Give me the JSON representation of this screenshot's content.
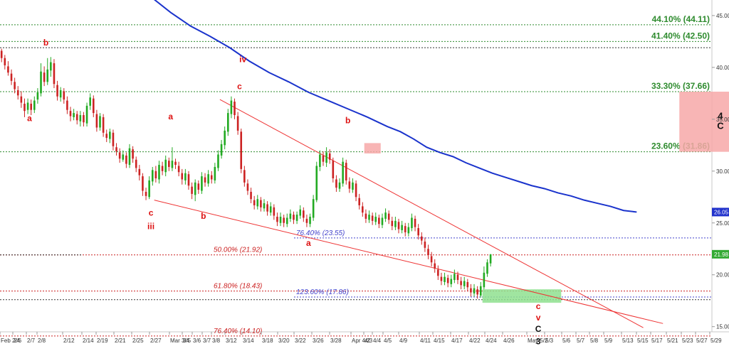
{
  "chart_data": {
    "type": "candlestick",
    "y_axis": {
      "min": 14.5,
      "max": 46.5,
      "ticks": [
        15.0,
        20.0,
        25.0,
        30.0,
        35.0,
        40.0,
        45.0
      ],
      "tick_labels": [
        "15.00",
        "20.00",
        "25.00",
        "30.00",
        "35.00",
        "40.00",
        "45.00"
      ],
      "position": "right"
    },
    "x_axis": {
      "tick_labels": [
        "Feb 2/4",
        "2/6",
        "2/7",
        "2/8",
        "2/12",
        "2/14",
        "2/19",
        "2/21",
        "2/25",
        "2/27",
        "Mar 3/4",
        "3/5",
        "3/6",
        "3/7",
        "3/8",
        "3/12",
        "3/14",
        "3/18",
        "3/20",
        "3/22",
        "3/26",
        "3/28",
        "Apr 4/2",
        "4/3",
        "4/4",
        "4/5",
        "4/9",
        "4/11",
        "4/15",
        "4/17",
        "4/22",
        "4/24",
        "4/26",
        "May 5/2",
        "5/3",
        "5/6",
        "5/7",
        "5/8",
        "5/9",
        "5/13",
        "5/15",
        "5/17",
        "5/21",
        "5/23",
        "5/27",
        "5/29"
      ]
    },
    "current_price_labels": [
      {
        "value": 26.05,
        "label": "26.05",
        "color": "#2233cc"
      },
      {
        "value": 21.98,
        "label": "21.98",
        "color": "#33aa33"
      }
    ],
    "levels": [
      {
        "label": "44.10% (44.11)",
        "value": 44.11,
        "color": "#2e8b2e",
        "style": "dotted"
      },
      {
        "label": "41.40% (42.50)",
        "value": 42.5,
        "color": "#2e8b2e",
        "style": "dotted"
      },
      {
        "label": "",
        "value": 41.9,
        "color": "#333333",
        "style": "dotted"
      },
      {
        "label": "33.30% (37.66)",
        "value": 37.66,
        "color": "#2e8b2e",
        "style": "dotted"
      },
      {
        "label": "23.60% (31.86)",
        "value": 31.86,
        "color": "#2e8b2e",
        "style": "dotted"
      },
      {
        "label": "76.40% (23.55)",
        "value": 23.55,
        "color": "#4444cc",
        "style": "dotted",
        "x_from": "3/22"
      },
      {
        "label": "50.00% (21.92)",
        "value": 21.92,
        "color": "#cc2222",
        "style": "dotted"
      },
      {
        "label": "",
        "value": 21.92,
        "color": "#333333",
        "style": "dotted",
        "x_to": "2/14"
      },
      {
        "label": "61.80% (18.43)",
        "value": 18.43,
        "color": "#cc2222",
        "style": "dotted"
      },
      {
        "label": "123.60% (17.86)",
        "value": 17.86,
        "color": "#4444cc",
        "style": "dotted",
        "x_from": "3/22"
      },
      {
        "label": "",
        "value": 17.6,
        "color": "#333333",
        "style": "dotted"
      },
      {
        "label": "76.40% (14.10)",
        "value": 14.1,
        "color": "#cc2222",
        "style": "dotted"
      }
    ],
    "moving_average": {
      "color": "#1a33cc",
      "points": [
        [
          46,
          46.8
        ],
        [
          52,
          45.3
        ],
        [
          58,
          44.0
        ],
        [
          64,
          43.0
        ],
        [
          70,
          41.9
        ],
        [
          76,
          40.6
        ],
        [
          82,
          39.5
        ],
        [
          88,
          38.6
        ],
        [
          94,
          37.6
        ],
        [
          100,
          36.8
        ],
        [
          106,
          36.0
        ],
        [
          112,
          35.2
        ],
        [
          118,
          34.3
        ],
        [
          122,
          33.8
        ],
        [
          126,
          33.1
        ],
        [
          130,
          32.3
        ],
        [
          134,
          31.8
        ],
        [
          138,
          31.4
        ],
        [
          142,
          30.8
        ],
        [
          146,
          30.3
        ],
        [
          150,
          29.8
        ],
        [
          154,
          29.4
        ],
        [
          158,
          29.0
        ],
        [
          162,
          28.6
        ],
        [
          166,
          28.3
        ],
        [
          170,
          27.9
        ],
        [
          174,
          27.6
        ],
        [
          178,
          27.2
        ],
        [
          182,
          26.9
        ],
        [
          186,
          26.6
        ],
        [
          190,
          26.2
        ],
        [
          194,
          26.05
        ]
      ]
    },
    "trendlines": [
      {
        "from": [
          47,
          27.2
        ],
        "to": [
          202,
          15.3
        ],
        "color": "#ee3333"
      },
      {
        "from": [
          67,
          36.9
        ],
        "to": [
          196,
          14.9
        ],
        "color": "#ee3333"
      }
    ],
    "zones": [
      {
        "x_from": 207,
        "x_to": 232,
        "y_from": 31.86,
        "y_to": 37.66,
        "color": "#f7a8a8",
        "label_lines": [
          "4",
          "C"
        ]
      },
      {
        "x_from": 111,
        "x_to": 116,
        "y_from": 31.7,
        "y_to": 32.7,
        "color": "#f7a8a8"
      },
      {
        "x_from": 147,
        "x_to": 171,
        "y_from": 17.3,
        "y_to": 18.6,
        "color": "#8fe08f"
      }
    ],
    "wave_labels": [
      {
        "text": "b",
        "x": 14,
        "y": 42.1,
        "color": "#dd1111"
      },
      {
        "text": "a",
        "x": 9,
        "y": 34.8,
        "color": "#dd1111"
      },
      {
        "text": "iv",
        "x": 74,
        "y": 40.5,
        "color": "#dd1111"
      },
      {
        "text": "c",
        "x": 73,
        "y": 37.9,
        "color": "#dd1111"
      },
      {
        "text": "a",
        "x": 52,
        "y": 35.0,
        "color": "#dd1111"
      },
      {
        "text": "b",
        "x": 106,
        "y": 34.6,
        "color": "#dd1111"
      },
      {
        "text": "c",
        "x": 46,
        "y": 25.7,
        "color": "#dd1111"
      },
      {
        "text": "iii",
        "x": 46,
        "y": 24.4,
        "color": "#dd1111"
      },
      {
        "text": "b",
        "x": 62,
        "y": 25.4,
        "color": "#dd1111"
      },
      {
        "text": "a",
        "x": 94,
        "y": 22.8,
        "color": "#dd1111"
      },
      {
        "text": "c",
        "x": 164,
        "y": 16.7,
        "color": "#dd1111"
      },
      {
        "text": "v",
        "x": 164,
        "y": 15.6,
        "color": "#dd1111"
      },
      {
        "text": "C",
        "x": 164,
        "y": 14.5,
        "color": "#111111"
      },
      {
        "text": "3",
        "x": 164,
        "y": 13.3,
        "color": "#111111"
      }
    ],
    "candles": [
      [
        0,
        41.6,
        40.9,
        41.8,
        40.5
      ],
      [
        1,
        40.9,
        40.2,
        41.2,
        39.8
      ],
      [
        2,
        40.1,
        39.5,
        40.6,
        39.2
      ],
      [
        3,
        39.4,
        38.7,
        39.8,
        38.3
      ],
      [
        4,
        38.6,
        37.9,
        39.0,
        37.5
      ],
      [
        5,
        37.8,
        37.3,
        38.2,
        36.9
      ],
      [
        6,
        37.2,
        36.6,
        37.7,
        36.1
      ],
      [
        7,
        36.5,
        35.8,
        37.0,
        35.2
      ],
      [
        8,
        35.9,
        36.6,
        37.0,
        35.5
      ],
      [
        9,
        36.5,
        35.9,
        36.9,
        35.4
      ],
      [
        10,
        35.9,
        36.8,
        37.2,
        35.6
      ],
      [
        11,
        36.9,
        37.6,
        38.0,
        36.5
      ],
      [
        12,
        37.5,
        39.6,
        40.4,
        37.2
      ],
      [
        13,
        39.5,
        38.6,
        40.1,
        38.2
      ],
      [
        14,
        38.6,
        39.8,
        40.9,
        38.3
      ],
      [
        15,
        39.7,
        40.5,
        41.0,
        39.1
      ],
      [
        16,
        40.4,
        38.4,
        40.8,
        38.0
      ],
      [
        17,
        38.3,
        37.2,
        38.7,
        36.8
      ],
      [
        18,
        37.1,
        37.8,
        38.1,
        36.7
      ],
      [
        19,
        37.7,
        36.9,
        38.0,
        36.5
      ],
      [
        20,
        36.8,
        35.9,
        37.2,
        35.5
      ],
      [
        21,
        35.8,
        35.3,
        36.2,
        34.8
      ],
      [
        22,
        35.2,
        35.6,
        36.0,
        34.9
      ],
      [
        23,
        35.5,
        34.9,
        35.8,
        34.5
      ],
      [
        24,
        34.8,
        35.4,
        35.8,
        34.3
      ],
      [
        25,
        35.4,
        34.7,
        35.7,
        34.3
      ],
      [
        26,
        34.6,
        36.3,
        36.6,
        34.3
      ],
      [
        27,
        36.3,
        37.1,
        37.5,
        35.9
      ],
      [
        28,
        37.0,
        35.6,
        37.3,
        35.2
      ],
      [
        29,
        35.5,
        34.2,
        35.9,
        33.8
      ],
      [
        30,
        34.2,
        35.3,
        35.6,
        33.9
      ],
      [
        31,
        35.2,
        33.7,
        35.5,
        33.3
      ],
      [
        32,
        33.6,
        33.2,
        34.0,
        32.8
      ],
      [
        33,
        33.1,
        33.8,
        34.1,
        32.7
      ],
      [
        34,
        33.7,
        32.4,
        34.0,
        32.0
      ],
      [
        35,
        32.3,
        31.9,
        32.7,
        31.5
      ],
      [
        36,
        31.8,
        31.2,
        32.2,
        30.8
      ],
      [
        37,
        31.1,
        31.6,
        32.0,
        30.9
      ],
      [
        38,
        31.5,
        30.7,
        31.8,
        30.3
      ],
      [
        39,
        30.6,
        32.2,
        32.6,
        30.3
      ],
      [
        40,
        32.1,
        31.2,
        32.4,
        30.8
      ],
      [
        41,
        31.1,
        30.3,
        31.4,
        29.9
      ],
      [
        42,
        30.2,
        29.6,
        30.6,
        29.1
      ],
      [
        43,
        29.5,
        28.1,
        29.8,
        27.6
      ],
      [
        44,
        28.0,
        27.6,
        28.4,
        27.2
      ],
      [
        45,
        27.5,
        29.1,
        29.5,
        27.3
      ],
      [
        46,
        29.0,
        30.1,
        30.4,
        28.6
      ],
      [
        47,
        30.0,
        29.3,
        30.5,
        28.9
      ],
      [
        48,
        29.2,
        30.6,
        31.0,
        28.8
      ],
      [
        49,
        30.5,
        30.0,
        30.9,
        29.6
      ],
      [
        50,
        29.9,
        31.1,
        31.5,
        29.5
      ],
      [
        51,
        31.0,
        30.4,
        31.3,
        30.0
      ],
      [
        52,
        30.3,
        31.0,
        32.3,
        30.0
      ],
      [
        53,
        30.9,
        30.6,
        31.2,
        30.2
      ],
      [
        54,
        30.5,
        29.9,
        30.9,
        29.5
      ],
      [
        55,
        29.8,
        29.2,
        30.2,
        28.7
      ],
      [
        56,
        29.1,
        29.8,
        30.2,
        28.7
      ],
      [
        57,
        29.7,
        28.6,
        30.0,
        28.2
      ],
      [
        58,
        28.5,
        27.8,
        28.9,
        27.3
      ],
      [
        59,
        27.7,
        28.9,
        29.2,
        27.1
      ],
      [
        60,
        28.8,
        28.2,
        29.1,
        27.8
      ],
      [
        61,
        28.1,
        29.5,
        29.9,
        27.8
      ],
      [
        62,
        29.4,
        28.9,
        29.8,
        28.5
      ],
      [
        63,
        28.8,
        29.7,
        30.1,
        28.5
      ],
      [
        64,
        29.6,
        29.2,
        30.0,
        28.8
      ],
      [
        65,
        29.1,
        30.4,
        30.8,
        28.8
      ],
      [
        66,
        30.3,
        31.6,
        32.0,
        30.0
      ],
      [
        67,
        31.5,
        32.6,
        33.0,
        31.2
      ],
      [
        68,
        32.5,
        33.9,
        34.3,
        32.1
      ],
      [
        69,
        33.8,
        35.6,
        36.0,
        33.4
      ],
      [
        70,
        35.5,
        36.8,
        37.2,
        35.1
      ],
      [
        71,
        36.7,
        35.4,
        37.0,
        35.0
      ],
      [
        72,
        35.3,
        33.9,
        35.7,
        33.5
      ],
      [
        73,
        33.8,
        30.2,
        34.1,
        29.8
      ],
      [
        74,
        30.1,
        28.9,
        30.5,
        28.5
      ],
      [
        75,
        28.8,
        28.1,
        29.2,
        27.7
      ],
      [
        76,
        28.0,
        27.3,
        28.4,
        26.9
      ],
      [
        77,
        27.2,
        26.7,
        27.6,
        26.3
      ],
      [
        78,
        26.6,
        27.3,
        27.7,
        26.3
      ],
      [
        79,
        27.2,
        26.5,
        27.5,
        26.1
      ],
      [
        80,
        26.4,
        26.9,
        27.3,
        26.1
      ],
      [
        81,
        26.8,
        26.1,
        27.1,
        25.7
      ],
      [
        82,
        26.0,
        26.6,
        27.0,
        25.7
      ],
      [
        83,
        26.5,
        25.7,
        26.8,
        25.3
      ],
      [
        84,
        25.6,
        25.1,
        26.0,
        24.7
      ],
      [
        85,
        25.0,
        25.6,
        26.0,
        24.7
      ],
      [
        86,
        25.5,
        25.0,
        25.8,
        24.6
      ],
      [
        87,
        24.9,
        25.5,
        25.9,
        24.6
      ],
      [
        88,
        25.4,
        25.9,
        26.3,
        25.1
      ],
      [
        89,
        25.8,
        25.3,
        26.1,
        24.9
      ],
      [
        90,
        25.2,
        25.8,
        26.1,
        24.9
      ],
      [
        91,
        25.7,
        26.3,
        26.7,
        25.4
      ],
      [
        92,
        26.2,
        25.5,
        26.5,
        25.1
      ],
      [
        93,
        25.4,
        25.0,
        25.8,
        24.6
      ],
      [
        94,
        24.9,
        25.6,
        25.9,
        24.6
      ],
      [
        95,
        25.5,
        27.3,
        27.7,
        25.2
      ],
      [
        96,
        27.2,
        30.5,
        30.9,
        27.0
      ],
      [
        97,
        30.4,
        31.6,
        32.0,
        30.0
      ],
      [
        98,
        31.5,
        30.9,
        31.9,
        30.5
      ],
      [
        99,
        30.8,
        31.8,
        32.3,
        30.4
      ],
      [
        100,
        31.7,
        31.1,
        32.1,
        30.7
      ],
      [
        101,
        31.0,
        29.3,
        31.3,
        28.9
      ],
      [
        102,
        29.2,
        28.4,
        29.6,
        28.0
      ],
      [
        103,
        28.3,
        28.9,
        29.3,
        28.0
      ],
      [
        104,
        28.8,
        30.9,
        31.3,
        28.5
      ],
      [
        105,
        30.8,
        29.1,
        31.1,
        28.7
      ],
      [
        106,
        29.0,
        28.3,
        29.4,
        27.9
      ],
      [
        107,
        28.2,
        28.9,
        29.3,
        27.9
      ],
      [
        108,
        28.8,
        27.5,
        29.1,
        27.1
      ],
      [
        109,
        27.4,
        26.7,
        27.8,
        26.3
      ],
      [
        110,
        26.6,
        26.0,
        27.0,
        25.6
      ],
      [
        111,
        25.9,
        25.4,
        26.3,
        25.0
      ],
      [
        112,
        25.3,
        25.8,
        26.2,
        25.0
      ],
      [
        113,
        25.7,
        25.2,
        26.0,
        24.8
      ],
      [
        114,
        25.1,
        25.6,
        26.0,
        24.8
      ],
      [
        115,
        25.5,
        24.9,
        25.8,
        24.5
      ],
      [
        116,
        24.8,
        25.5,
        25.9,
        24.5
      ],
      [
        117,
        25.4,
        26.0,
        26.4,
        25.1
      ],
      [
        118,
        25.9,
        25.3,
        26.2,
        24.9
      ],
      [
        119,
        25.2,
        24.7,
        25.6,
        24.3
      ],
      [
        120,
        24.6,
        25.2,
        25.6,
        24.3
      ],
      [
        121,
        25.1,
        24.4,
        25.4,
        24.0
      ],
      [
        122,
        24.3,
        24.8,
        25.2,
        24.0
      ],
      [
        123,
        24.7,
        24.1,
        25.0,
        23.7
      ],
      [
        124,
        24.0,
        24.6,
        25.0,
        23.7
      ],
      [
        125,
        24.5,
        25.5,
        25.9,
        24.2
      ],
      [
        126,
        25.4,
        24.6,
        25.7,
        24.2
      ],
      [
        127,
        24.5,
        23.8,
        24.9,
        23.4
      ],
      [
        128,
        23.7,
        23.3,
        24.1,
        22.9
      ],
      [
        129,
        23.2,
        22.6,
        23.6,
        22.2
      ],
      [
        130,
        22.5,
        21.9,
        22.9,
        21.5
      ],
      [
        131,
        21.8,
        21.2,
        22.2,
        20.8
      ],
      [
        132,
        21.1,
        20.6,
        21.5,
        20.2
      ],
      [
        133,
        20.5,
        19.9,
        20.9,
        19.5
      ],
      [
        134,
        19.8,
        19.4,
        20.2,
        19.0
      ],
      [
        135,
        19.3,
        19.8,
        20.2,
        19.0
      ],
      [
        136,
        19.7,
        19.2,
        20.0,
        18.8
      ],
      [
        137,
        19.1,
        19.6,
        20.0,
        18.8
      ],
      [
        138,
        19.5,
        20.1,
        20.5,
        19.2
      ],
      [
        139,
        20.0,
        19.5,
        20.3,
        19.1
      ],
      [
        140,
        19.4,
        19.0,
        19.8,
        18.6
      ],
      [
        141,
        18.9,
        19.4,
        19.8,
        18.6
      ],
      [
        142,
        19.3,
        18.8,
        19.6,
        18.4
      ],
      [
        143,
        18.7,
        18.3,
        19.1,
        17.9
      ],
      [
        144,
        18.2,
        18.7,
        19.1,
        17.9
      ],
      [
        145,
        18.6,
        18.1,
        18.9,
        17.7
      ],
      [
        146,
        18.0,
        18.9,
        19.3,
        17.8
      ],
      [
        147,
        18.8,
        20.2,
        20.8,
        18.6
      ],
      [
        148,
        20.1,
        21.2,
        21.5,
        19.8
      ],
      [
        149,
        21.1,
        21.98,
        22.0,
        20.8
      ]
    ]
  }
}
